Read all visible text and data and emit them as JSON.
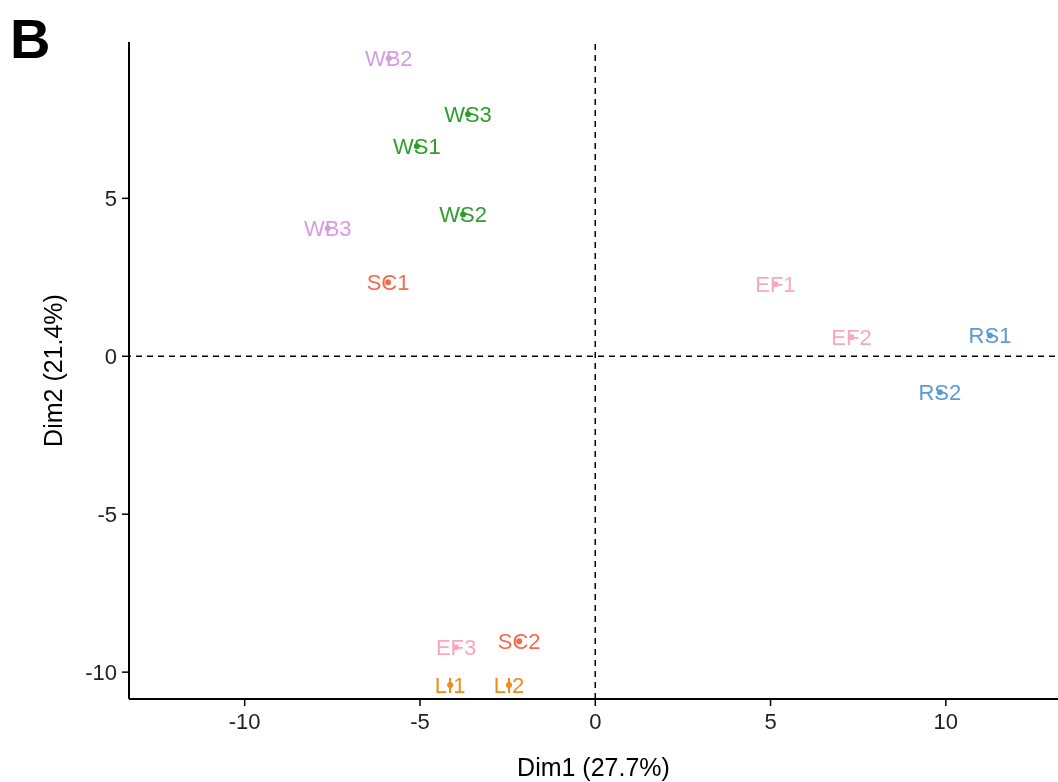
{
  "chart_data": {
    "type": "scatter",
    "xlabel": "Dim1 (27.7%)",
    "ylabel": "Dim2 (21.4%)",
    "annotations": [
      "B"
    ],
    "xlim": [
      -13.3,
      13.2
    ],
    "marker": "circle",
    "ylim": [
      -10.85,
      9.95
    ],
    "xticks": [
      -10,
      -5,
      0,
      5,
      10
    ],
    "yticks": [
      -10,
      -5,
      0,
      5
    ],
    "ref_lines": [
      {
        "axis": "x",
        "value": 0,
        "line_style": "dashed",
        "color": "#000000"
      },
      {
        "axis": "y",
        "value": 0,
        "line_style": "dashed",
        "color": "#000000"
      }
    ],
    "series": [
      {
        "color": "#d49de0",
        "x": [
          -5.89,
          -7.63
        ],
        "values": [
          9.43,
          4.05
        ],
        "value_labels": [
          "WB2",
          "WB3"
        ]
      },
      {
        "color": "#2e9e2e",
        "x": [
          -3.63,
          -5.09,
          -3.77
        ],
        "values": [
          7.66,
          6.65,
          4.49
        ],
        "value_labels": [
          "WS3",
          "WS1",
          "WS2"
        ]
      },
      {
        "color": "#f7694f",
        "x": [
          -5.91,
          -2.17
        ],
        "values": [
          2.34,
          -9.02
        ],
        "value_labels": [
          "SC1",
          "SC2"
        ]
      },
      {
        "color": "#f9a8bb",
        "x": [
          5.14,
          7.31,
          -3.97
        ],
        "values": [
          2.28,
          0.6,
          -9.21
        ],
        "value_labels": [
          "EF1",
          "EF2",
          "EF3"
        ]
      },
      {
        "color": "#5b9bd5",
        "x": [
          11.26,
          9.83
        ],
        "values": [
          0.66,
          -1.14
        ],
        "value_labels": [
          "RS1",
          "RS2"
        ]
      },
      {
        "color": "#f08a1c",
        "x": [
          -4.14,
          -2.46
        ],
        "values": [
          -10.41,
          -10.41
        ],
        "value_labels": [
          "LI1",
          "LI2"
        ]
      }
    ]
  }
}
